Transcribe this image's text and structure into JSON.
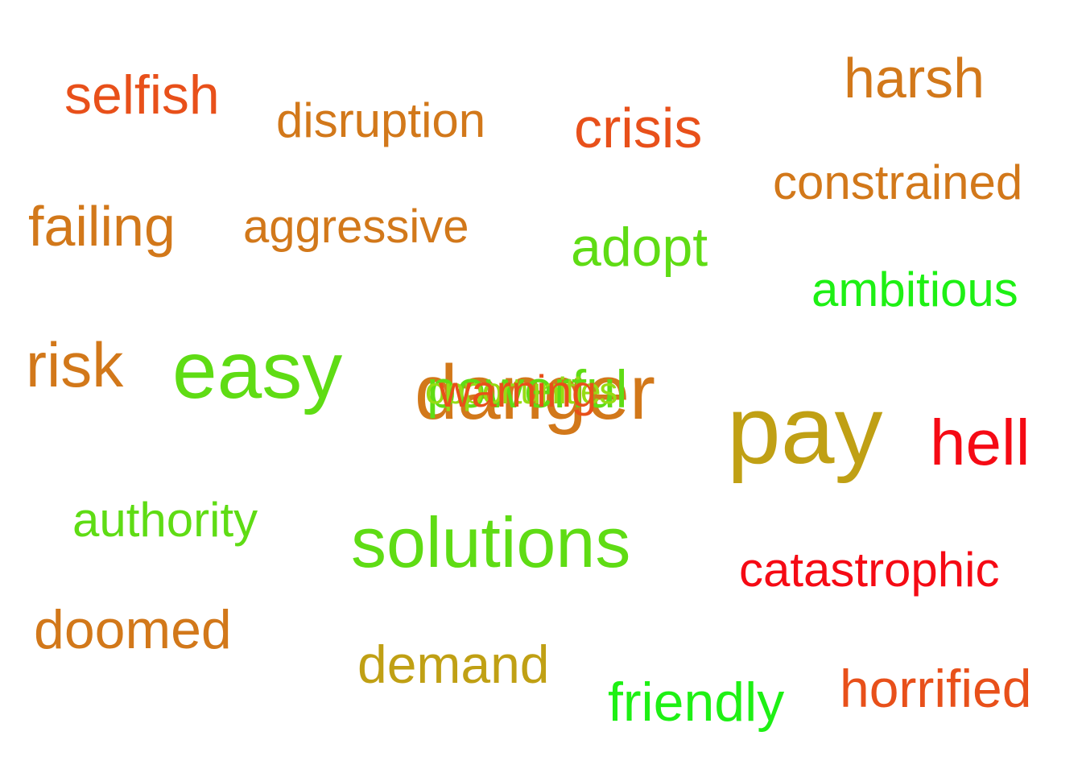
{
  "words": [
    {
      "text": "selfish",
      "color": "#e8501a"
    },
    {
      "text": "disruption",
      "color": "#d2781a"
    },
    {
      "text": "crisis",
      "color": "#e8501a"
    },
    {
      "text": "harsh",
      "color": "#d2781a"
    },
    {
      "text": "constrained",
      "color": "#d2781a"
    },
    {
      "text": "failing",
      "color": "#d2781a"
    },
    {
      "text": "aggressive",
      "color": "#d2781a"
    },
    {
      "text": "adopt",
      "color": "#5fdc14"
    },
    {
      "text": "ambitious",
      "color": "#1ef014"
    },
    {
      "text": "risk",
      "color": "#d2781a"
    },
    {
      "text": "easy",
      "color": "#5fdc14"
    },
    {
      "text": "danger",
      "color": "#d2781a"
    },
    {
      "text": "powerful",
      "color": "#5fdc14"
    },
    {
      "text": "opportunities",
      "color": "#96dc14"
    },
    {
      "text": "warning",
      "color": "#e8501a"
    },
    {
      "text": "pay",
      "color": "#c0a014"
    },
    {
      "text": "hell",
      "color": "#f50a14"
    },
    {
      "text": "authority",
      "color": "#5fdc14"
    },
    {
      "text": "solutions",
      "color": "#5fdc14"
    },
    {
      "text": "catastrophic",
      "color": "#f50a14"
    },
    {
      "text": "doomed",
      "color": "#d2781a"
    },
    {
      "text": "demand",
      "color": "#c0a014"
    },
    {
      "text": "friendly",
      "color": "#1ef014"
    },
    {
      "text": "horrified",
      "color": "#e8501a"
    }
  ]
}
